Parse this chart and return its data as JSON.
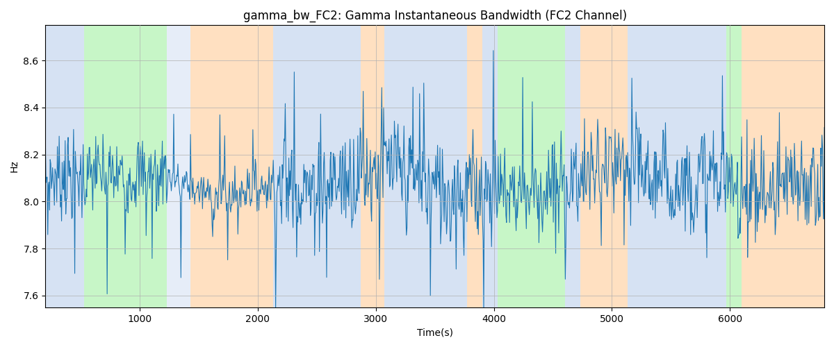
{
  "title": "gamma_bw_FC2: Gamma Instantaneous Bandwidth (FC2 Channel)",
  "xlabel": "Time(s)",
  "ylabel": "Hz",
  "xlim": [
    200,
    6800
  ],
  "ylim": [
    7.55,
    8.75
  ],
  "line_color": "#1f77b4",
  "line_width": 0.8,
  "grid_color": "#b0b0b0",
  "bands": [
    {
      "xmin": 200,
      "xmax": 530,
      "color": "#aec6e8",
      "alpha": 0.5
    },
    {
      "xmin": 530,
      "xmax": 1230,
      "color": "#90ee90",
      "alpha": 0.5
    },
    {
      "xmin": 1230,
      "xmax": 1430,
      "color": "#aec6e8",
      "alpha": 0.3
    },
    {
      "xmin": 1430,
      "xmax": 2130,
      "color": "#ffcc99",
      "alpha": 0.6
    },
    {
      "xmin": 2130,
      "xmax": 2870,
      "color": "#aec6e8",
      "alpha": 0.5
    },
    {
      "xmin": 2870,
      "xmax": 3070,
      "color": "#ffcc99",
      "alpha": 0.6
    },
    {
      "xmin": 3070,
      "xmax": 3770,
      "color": "#aec6e8",
      "alpha": 0.5
    },
    {
      "xmin": 3770,
      "xmax": 3900,
      "color": "#ffcc99",
      "alpha": 0.6
    },
    {
      "xmin": 3900,
      "xmax": 4030,
      "color": "#aec6e8",
      "alpha": 0.5
    },
    {
      "xmin": 4030,
      "xmax": 4600,
      "color": "#90ee90",
      "alpha": 0.5
    },
    {
      "xmin": 4600,
      "xmax": 4730,
      "color": "#aec6e8",
      "alpha": 0.5
    },
    {
      "xmin": 4730,
      "xmax": 5130,
      "color": "#ffcc99",
      "alpha": 0.6
    },
    {
      "xmin": 5130,
      "xmax": 5970,
      "color": "#aec6e8",
      "alpha": 0.5
    },
    {
      "xmin": 5970,
      "xmax": 6100,
      "color": "#90ee90",
      "alpha": 0.5
    },
    {
      "xmin": 6100,
      "xmax": 6800,
      "color": "#ffcc99",
      "alpha": 0.6
    }
  ],
  "xticks": [
    1000,
    2000,
    3000,
    4000,
    5000,
    6000
  ],
  "yticks": [
    7.6,
    7.8,
    8.0,
    8.2,
    8.4,
    8.6
  ],
  "title_fontsize": 12,
  "label_fontsize": 10,
  "figsize": [
    12.0,
    5.0
  ],
  "dpi": 100
}
